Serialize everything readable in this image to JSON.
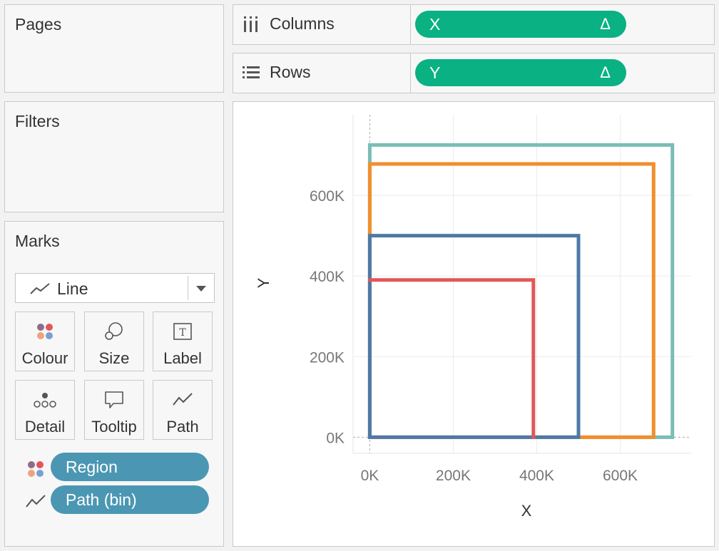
{
  "panels": {
    "pages_title": "Pages",
    "filters_title": "Filters",
    "marks_title": "Marks"
  },
  "shelves": {
    "columns": {
      "label": "Columns",
      "pill": "X",
      "pill_icon": "Δ"
    },
    "rows": {
      "label": "Rows",
      "pill": "Y",
      "pill_icon": "Δ"
    }
  },
  "marks": {
    "type": "Line",
    "buttons": [
      {
        "label": "Colour",
        "icon": "colour-dots-icon"
      },
      {
        "label": "Size",
        "icon": "size-circles-icon"
      },
      {
        "label": "Label",
        "icon": "text-label-icon"
      },
      {
        "label": "Detail",
        "icon": "detail-dots-icon"
      },
      {
        "label": "Tooltip",
        "icon": "speech-bubble-icon"
      },
      {
        "label": "Path",
        "icon": "path-line-icon"
      }
    ],
    "fields": [
      {
        "label": "Region",
        "icon": "colour-dots-icon"
      },
      {
        "label": "Path (bin)",
        "icon": "path-line-icon"
      }
    ]
  },
  "colors": {
    "green_pill": "#0ab182",
    "blue_pill": "#4b97b3",
    "teal": "#79bdb6",
    "orange": "#f28e2b",
    "blue": "#4e79a7",
    "red": "#e15759"
  },
  "chart_data": {
    "type": "line",
    "xlabel": "X",
    "ylabel": "Y",
    "xlim": [
      -40000,
      770000
    ],
    "ylim": [
      -40000,
      800000
    ],
    "x_ticks": [
      0,
      200000,
      400000,
      600000
    ],
    "x_tick_labels": [
      "0K",
      "200K",
      "400K",
      "600K"
    ],
    "y_ticks": [
      0,
      200000,
      400000,
      600000
    ],
    "y_tick_labels": [
      "0K",
      "200K",
      "400K",
      "600K"
    ],
    "grid": true,
    "series": [
      {
        "color": "#79bdb6",
        "points": [
          [
            0,
            0
          ],
          [
            0,
            725000
          ],
          [
            725000,
            725000
          ],
          [
            725000,
            0
          ],
          [
            0,
            0
          ]
        ]
      },
      {
        "color": "#f28e2b",
        "points": [
          [
            0,
            0
          ],
          [
            0,
            678000
          ],
          [
            680000,
            678000
          ],
          [
            680000,
            0
          ],
          [
            0,
            0
          ]
        ]
      },
      {
        "color": "#4e79a7",
        "points": [
          [
            0,
            0
          ],
          [
            0,
            500000
          ],
          [
            500000,
            500000
          ],
          [
            500000,
            0
          ],
          [
            0,
            0
          ]
        ]
      },
      {
        "color": "#e15759",
        "points": [
          [
            0,
            390000
          ],
          [
            392000,
            390000
          ],
          [
            392000,
            0
          ]
        ]
      }
    ]
  }
}
